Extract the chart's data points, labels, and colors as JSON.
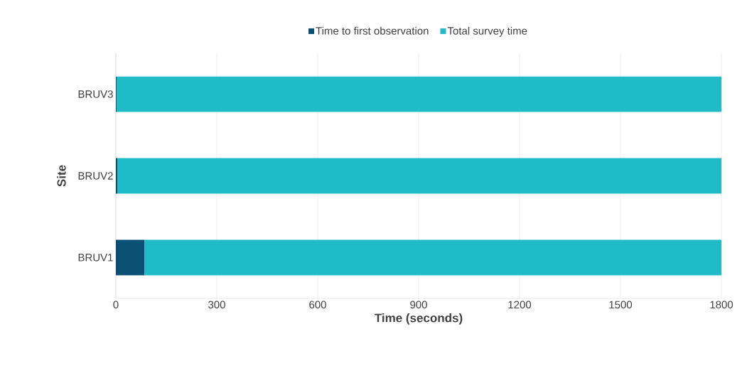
{
  "chart_data": {
    "type": "bar",
    "orientation": "horizontal",
    "stacked": true,
    "xlabel": "Time (seconds)",
    "ylabel": "Site",
    "categories": [
      "BRUV3",
      "BRUV2",
      "BRUV1"
    ],
    "series": [
      {
        "name": "Time to first observation",
        "color": "#0a4f74",
        "values": [
          2,
          5,
          85
        ]
      },
      {
        "name": "Total survey time",
        "color": "#1fbcc8",
        "values": [
          1798,
          1795,
          1715
        ]
      }
    ],
    "xlim": [
      0,
      1800
    ],
    "xticks": [
      0,
      300,
      600,
      900,
      1200,
      1500,
      1800
    ],
    "grid": "x",
    "legend": "top"
  }
}
